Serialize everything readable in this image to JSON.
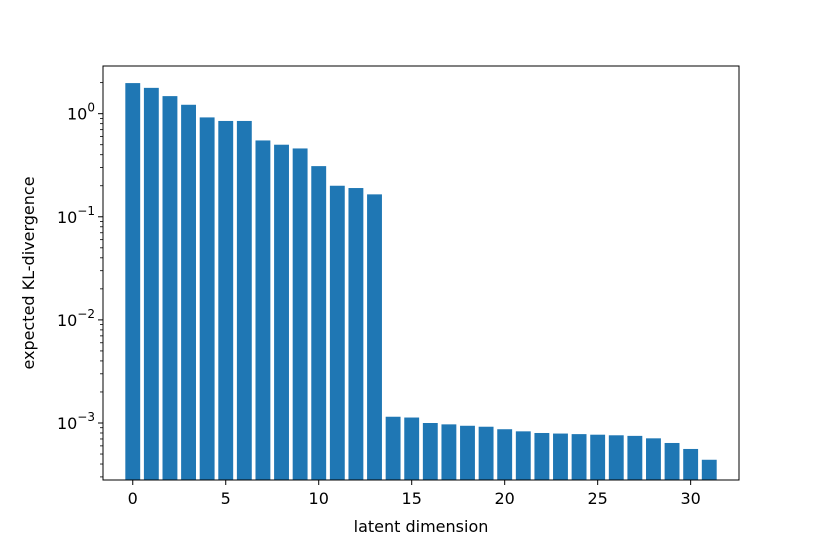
{
  "chart_data": {
    "type": "bar",
    "title": "",
    "xlabel": "latent dimension",
    "ylabel": "expected KL-divergence",
    "yscale": "log",
    "grid": false,
    "bar_color": "#1f77b4",
    "xlim": [
      -1.6,
      32.6
    ],
    "ylim": [
      0.00028,
      2.9
    ],
    "x_ticks": [
      0,
      5,
      10,
      15,
      20,
      25,
      30
    ],
    "y_major_ticks": [
      {
        "value": 0.001,
        "base": "10",
        "exp": "−3"
      },
      {
        "value": 0.01,
        "base": "10",
        "exp": "−2"
      },
      {
        "value": 0.1,
        "base": "10",
        "exp": "−1"
      },
      {
        "value": 1,
        "base": "10",
        "exp": "0"
      }
    ],
    "x": [
      0,
      1,
      2,
      3,
      4,
      5,
      6,
      7,
      8,
      9,
      10,
      11,
      12,
      13,
      14,
      15,
      16,
      17,
      18,
      19,
      20,
      21,
      22,
      23,
      24,
      25,
      26,
      27,
      28,
      29,
      30,
      31
    ],
    "values": [
      1.98,
      1.78,
      1.48,
      1.22,
      0.92,
      0.85,
      0.85,
      0.55,
      0.5,
      0.46,
      0.31,
      0.2,
      0.19,
      0.165,
      0.00115,
      0.00113,
      0.001,
      0.00097,
      0.00094,
      0.00092,
      0.00087,
      0.00083,
      0.0008,
      0.00079,
      0.00078,
      0.00077,
      0.00076,
      0.00075,
      0.00071,
      0.00064,
      0.00056,
      0.00044
    ]
  }
}
